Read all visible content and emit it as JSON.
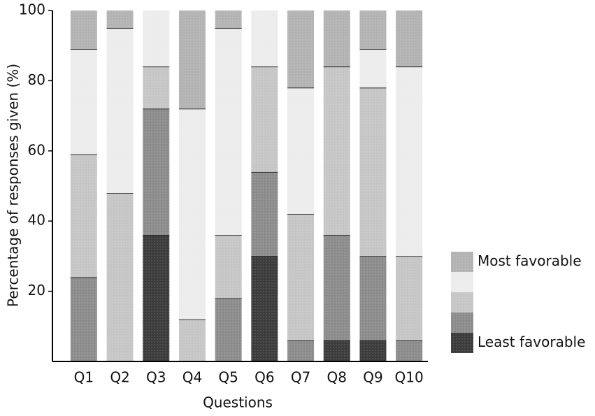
{
  "chart_data": {
    "type": "stacked_bar",
    "x_label": "Questions",
    "y_label": "Percentage of responses given (%)",
    "categories": [
      "Q1",
      "Q2",
      "Q3",
      "Q4",
      "Q5",
      "Q6",
      "Q7",
      "Q8",
      "Q9",
      "Q10"
    ],
    "series": [
      {
        "name": "Least favorable",
        "color": "#3c3c3c",
        "values": [
          0,
          0,
          36,
          0,
          0,
          30,
          0,
          6,
          6,
          0
        ]
      },
      {
        "name": null,
        "color": "#8c8c8c",
        "values": [
          24,
          0,
          36,
          0,
          18,
          24,
          6,
          30,
          24,
          6
        ]
      },
      {
        "name": null,
        "color": "#c6c6c6",
        "values": [
          35,
          48,
          12,
          12,
          18,
          30,
          36,
          48,
          48,
          24
        ]
      },
      {
        "name": null,
        "color": "#ececec",
        "values": [
          30,
          47,
          16,
          60,
          59,
          16,
          36,
          0,
          11,
          54
        ]
      },
      {
        "name": "Most favorable",
        "color": "#b3b3b3",
        "values": [
          11,
          5,
          0,
          28,
          5,
          0,
          22,
          16,
          11,
          16
        ]
      }
    ],
    "ylim": [
      0,
      100
    ],
    "yticks": [
      20,
      40,
      60,
      80,
      100
    ]
  }
}
